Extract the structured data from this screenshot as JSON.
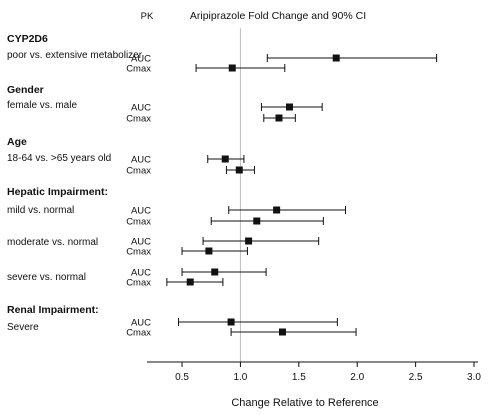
{
  "chart_data": {
    "type": "forest",
    "title": "Aripiprazole Fold Change and 90% CI",
    "pk_header": "PK",
    "xlabel": "Change Relative to Reference",
    "xlim": [
      0.2,
      3.0
    ],
    "xticks": [
      "0.5",
      "1.0",
      "1.5",
      "2.0",
      "2.5",
      "3.0"
    ],
    "reference_line": 1.0,
    "groups": [
      {
        "name": "CYP2D6",
        "comparisons": [
          {
            "label": "poor vs. extensive metabolizer",
            "rows": [
              {
                "pk": "AUC",
                "estimate": 1.82,
                "lower": 1.23,
                "upper": 2.68
              },
              {
                "pk": "Cmax",
                "estimate": 0.93,
                "lower": 0.62,
                "upper": 1.38
              }
            ]
          }
        ]
      },
      {
        "name": "Gender",
        "comparisons": [
          {
            "label": "female vs. male",
            "rows": [
              {
                "pk": "AUC",
                "estimate": 1.42,
                "lower": 1.18,
                "upper": 1.7
              },
              {
                "pk": "Cmax",
                "estimate": 1.33,
                "lower": 1.2,
                "upper": 1.47
              }
            ]
          }
        ]
      },
      {
        "name": "Age",
        "comparisons": [
          {
            "label": "18-64 vs. >65 years old",
            "rows": [
              {
                "pk": "AUC",
                "estimate": 0.87,
                "lower": 0.72,
                "upper": 1.03
              },
              {
                "pk": "Cmax",
                "estimate": 0.99,
                "lower": 0.88,
                "upper": 1.12
              }
            ]
          }
        ]
      },
      {
        "name": "Hepatic Impairment:",
        "comparisons": [
          {
            "label": "mild vs. normal",
            "rows": [
              {
                "pk": "AUC",
                "estimate": 1.31,
                "lower": 0.9,
                "upper": 1.9
              },
              {
                "pk": "Cmax",
                "estimate": 1.14,
                "lower": 0.75,
                "upper": 1.71
              }
            ]
          },
          {
            "label": "moderate vs. normal",
            "rows": [
              {
                "pk": "AUC",
                "estimate": 1.07,
                "lower": 0.68,
                "upper": 1.67
              },
              {
                "pk": "Cmax",
                "estimate": 0.73,
                "lower": 0.5,
                "upper": 1.06
              }
            ]
          },
          {
            "label": "severe vs. normal",
            "rows": [
              {
                "pk": "AUC",
                "estimate": 0.78,
                "lower": 0.5,
                "upper": 1.22
              },
              {
                "pk": "Cmax",
                "estimate": 0.57,
                "lower": 0.37,
                "upper": 0.85
              }
            ]
          }
        ]
      },
      {
        "name": "Renal Impairment:",
        "comparisons": [
          {
            "label": "Severe",
            "rows": [
              {
                "pk": "AUC",
                "estimate": 0.92,
                "lower": 0.47,
                "upper": 1.83
              },
              {
                "pk": "Cmax",
                "estimate": 1.36,
                "lower": 0.92,
                "upper": 1.99
              }
            ]
          }
        ]
      }
    ]
  }
}
